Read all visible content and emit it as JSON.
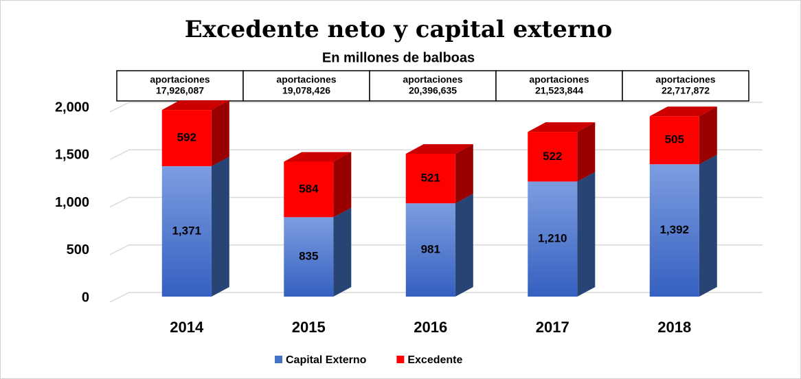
{
  "chart_data": {
    "type": "bar3d_stacked",
    "title": "Excedente neto y capital externo",
    "subtitle": "En millones de balboas",
    "categories": [
      "2014",
      "2015",
      "2016",
      "2017",
      "2018"
    ],
    "series": [
      {
        "name": "Capital Externo",
        "color": "#4472c4",
        "values": [
          1371,
          835,
          981,
          1210,
          1392
        ],
        "value_labels": [
          "1,371",
          "835",
          "981",
          "1,210",
          "1,392"
        ]
      },
      {
        "name": "Excedente",
        "color": "#ff0000",
        "values": [
          592,
          584,
          521,
          522,
          505
        ]
      }
    ],
    "annotations": [
      {
        "text": "aportaciones",
        "amount": "17,926,087"
      },
      {
        "text": "aportaciones",
        "amount": "19,078,426"
      },
      {
        "text": "aportaciones",
        "amount": "20,396,635"
      },
      {
        "text": "aportaciones",
        "amount": "21,523,844"
      },
      {
        "text": "aportaciones",
        "amount": "22,717,872"
      }
    ],
    "ylim": [
      0,
      2000
    ],
    "yticks": [
      0,
      500,
      {
        "value": 1000,
        "label": "1,000"
      },
      {
        "value": 1500,
        "label": "1,500"
      },
      {
        "value": 2000,
        "label": "2,000"
      }
    ],
    "grid": true,
    "legend": "bottom"
  }
}
